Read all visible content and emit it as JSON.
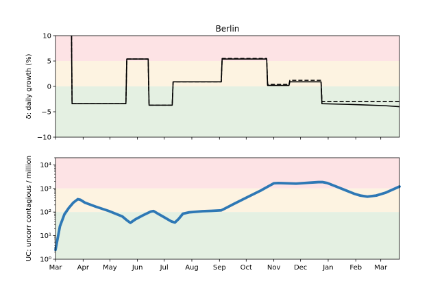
{
  "colors": {
    "band_red": "#fde3e5",
    "band_yellow": "#fdf3e1",
    "band_green": "#e4f0e2",
    "line_black": "#000000",
    "line_blue": "#2e78b5"
  },
  "chart_data": [
    {
      "type": "line",
      "title": "Berlin",
      "xlabel": "",
      "ylabel": "δ: daily growth (%)",
      "ylim": [
        -10,
        10
      ],
      "yticks": [
        10,
        5,
        0,
        -5,
        -10
      ],
      "ytick_labels": [
        "10",
        "5",
        "0",
        "−5",
        "−10"
      ],
      "x_unit": "days since Mar 1",
      "bands": [
        {
          "from": 5,
          "to": 10,
          "color": "red"
        },
        {
          "from": 0,
          "to": 5,
          "color": "yellow"
        },
        {
          "from": -10,
          "to": 0,
          "color": "green"
        }
      ],
      "series": [
        {
          "style": "solid",
          "points": [
            [
              18,
              10
            ],
            [
              18.6,
              -3.4
            ],
            [
              79,
              -3.4
            ],
            [
              80,
              5.4
            ],
            [
              104,
              5.4
            ],
            [
              105,
              -3.7
            ],
            [
              131,
              -3.7
            ],
            [
              132,
              0.9
            ],
            [
              186,
              0.9
            ],
            [
              187,
              5.4
            ],
            [
              237,
              5.4
            ],
            [
              238,
              0.2
            ],
            [
              262,
              0.2
            ],
            [
              263,
              0.9
            ],
            [
              298,
              0.9
            ],
            [
              299,
              -3.4
            ],
            [
              340,
              -3.6
            ],
            [
              370,
              -3.8
            ],
            [
              386,
              -4.0
            ]
          ]
        },
        {
          "style": "dashed",
          "points": [
            [
              18,
              10
            ],
            [
              18.6,
              -3.4
            ],
            [
              79,
              -3.4
            ],
            [
              80,
              5.4
            ],
            [
              104,
              5.4
            ],
            [
              105,
              -3.7
            ],
            [
              131,
              -3.7
            ],
            [
              132,
              0.9
            ],
            [
              186,
              0.9
            ],
            [
              187,
              5.5
            ],
            [
              237,
              5.5
            ],
            [
              238,
              0.4
            ],
            [
              262,
              0.4
            ],
            [
              263,
              1.2
            ],
            [
              298,
              1.2
            ],
            [
              299,
              -3.0
            ],
            [
              386,
              -3.0
            ]
          ]
        }
      ]
    },
    {
      "type": "line",
      "title": "",
      "xlabel": "",
      "ylabel": "UC: uncorr contagious / million",
      "yscale": "log",
      "ylim": [
        1,
        20000
      ],
      "yticks": [
        1,
        10,
        100,
        1000,
        10000
      ],
      "ytick_labels": [
        "10⁰",
        "10¹",
        "10²",
        "10³",
        "10⁴"
      ],
      "x_unit": "days since Mar 1",
      "xlim": [
        0,
        386
      ],
      "xticks": [
        0,
        31,
        61,
        92,
        122,
        153,
        184,
        214,
        245,
        275,
        306,
        337,
        365
      ],
      "xtick_labels": [
        "Mar",
        "Apr",
        "May",
        "Jun",
        "Jul",
        "Aug",
        "Sep",
        "Oct",
        "Nov",
        "Dec",
        "Jan",
        "Feb",
        "Mar"
      ],
      "bands": [
        {
          "from": 1000,
          "to": 20000,
          "color": "red"
        },
        {
          "from": 100,
          "to": 1000,
          "color": "yellow"
        },
        {
          "from": 1,
          "to": 100,
          "color": "green"
        }
      ],
      "series": [
        {
          "style": "solid-thick",
          "points": [
            [
              0,
              2.5
            ],
            [
              5,
              25
            ],
            [
              10,
              80
            ],
            [
              15,
              150
            ],
            [
              20,
              250
            ],
            [
              25,
              350
            ],
            [
              28,
              330
            ],
            [
              33,
              250
            ],
            [
              45,
              170
            ],
            [
              60,
              110
            ],
            [
              75,
              65
            ],
            [
              80,
              45
            ],
            [
              84,
              35
            ],
            [
              90,
              50
            ],
            [
              98,
              72
            ],
            [
              107,
              105
            ],
            [
              110,
              110
            ],
            [
              115,
              85
            ],
            [
              122,
              60
            ],
            [
              130,
              40
            ],
            [
              134,
              36
            ],
            [
              138,
              50
            ],
            [
              143,
              85
            ],
            [
              150,
              97
            ],
            [
              165,
              108
            ],
            [
              175,
              112
            ],
            [
              186,
              118
            ],
            [
              190,
              140
            ],
            [
              200,
              220
            ],
            [
              215,
              420
            ],
            [
              230,
              800
            ],
            [
              240,
              1300
            ],
            [
              245,
              1650
            ],
            [
              250,
              1700
            ],
            [
              270,
              1600
            ],
            [
              285,
              1750
            ],
            [
              295,
              1850
            ],
            [
              300,
              1850
            ],
            [
              305,
              1700
            ],
            [
              315,
              1200
            ],
            [
              325,
              850
            ],
            [
              335,
              600
            ],
            [
              342,
              500
            ],
            [
              350,
              450
            ],
            [
              360,
              500
            ],
            [
              370,
              650
            ],
            [
              380,
              950
            ],
            [
              386,
              1200
            ]
          ]
        }
      ]
    }
  ]
}
